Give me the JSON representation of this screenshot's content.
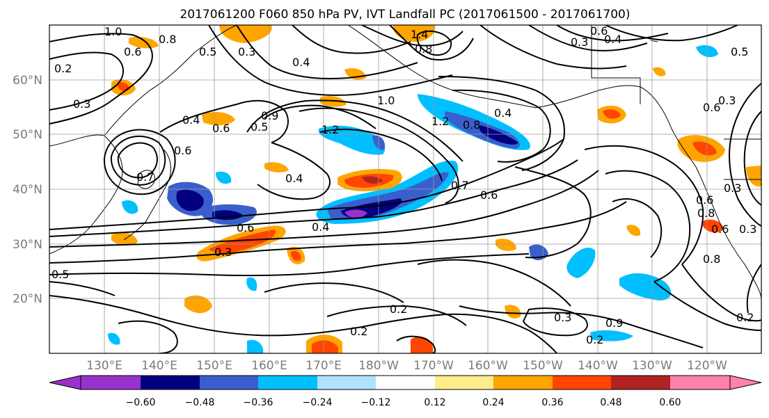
{
  "title": "2017061200 F060 850 hPa PV, IVT Landfall PC (2017061500 - 2017061700)",
  "map": {
    "lon_labels": [
      "130°E",
      "140°E",
      "150°E",
      "160°E",
      "170°E",
      "180°W",
      "170°W",
      "160°W",
      "150°W",
      "140°W",
      "130°W",
      "120°W"
    ],
    "lat_labels": [
      "60°N",
      "50°N",
      "40°N",
      "30°N",
      "20°N"
    ]
  },
  "colorbar": {
    "ticks": [
      "−0.60",
      "−0.48",
      "−0.36",
      "−0.24",
      "−0.12",
      "0.12",
      "0.24",
      "0.36",
      "0.48",
      "0.60"
    ],
    "colors": [
      "#9932cc",
      "#000080",
      "#3a5fcd",
      "#00bfff",
      "#b0e2ff",
      "#ffffff",
      "#ffec8b",
      "#ffa500",
      "#ff4500",
      "#b22222",
      "#ff82ab"
    ]
  },
  "contour_labels": [
    "1.0",
    "0.8",
    "0.6",
    "0.5",
    "0.3",
    "0.4",
    "1.4",
    "0.8",
    "0.6",
    "0.3",
    "0.4",
    "0.5",
    "0.2",
    "0.3",
    "0.4",
    "0.6",
    "0.9",
    "1.0",
    "1.2",
    "0.5",
    "0.6",
    "0.4",
    "1.2",
    "0.6",
    "0.8",
    "0.4",
    "0.6",
    "0.7",
    "0.6",
    "0.7",
    "0.4",
    "0.8",
    "0.6",
    "0.3",
    "0.6",
    "0.3",
    "0.8",
    "0.3",
    "0.2",
    "0.2",
    "0.3",
    "0.2",
    "0.2",
    "0.5",
    "0.9",
    "0.3"
  ],
  "colors": {
    "contour": "#000000",
    "grid": "#9a9a9a",
    "tick_text": "#7a7a7a"
  }
}
